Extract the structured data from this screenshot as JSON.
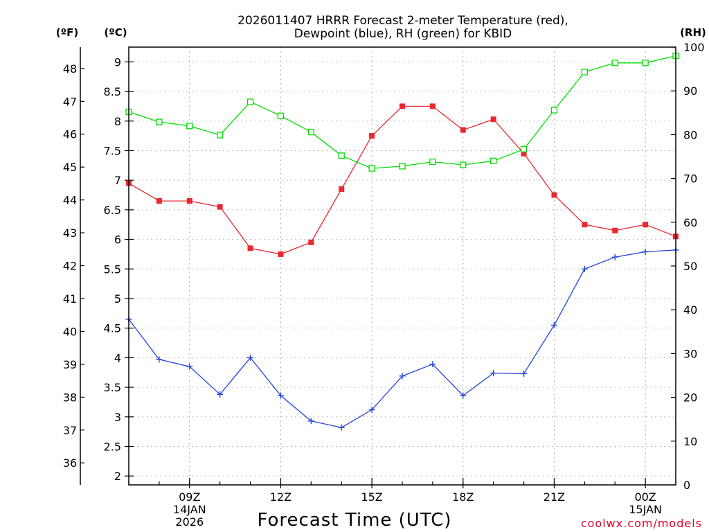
{
  "title_lines": [
    "2026011407 HRRR Forecast 2-meter Temperature (red),",
    "Dewpoint (blue), RH (green) for KBID"
  ],
  "units": {
    "fahrenheit": "(ºF)",
    "celsius": "(ºC)",
    "rh": "(RH)"
  },
  "credit": "coolwx.com/models",
  "colors": {
    "temperature": "#e8282e",
    "dewpoint": "#2244dd",
    "rh": "#00dd00",
    "grid": "#9a9a9a"
  },
  "chart_data": {
    "type": "line",
    "title": "2026011407 HRRR Forecast 2-meter Temperature (red), Dewpoint (blue), RH (green) for KBID",
    "xlabel": "Forecast Time (UTC)",
    "x_hours": [
      7,
      8,
      9,
      10,
      11,
      12,
      13,
      14,
      15,
      16,
      17,
      18,
      19,
      20,
      21,
      22,
      23,
      24,
      25
    ],
    "x_range": [
      7,
      25
    ],
    "x_ticks": [
      {
        "hour": 9,
        "lines": [
          "09Z",
          "14JAN",
          "2026"
        ]
      },
      {
        "hour": 12,
        "lines": [
          "12Z"
        ]
      },
      {
        "hour": 15,
        "lines": [
          "15Z"
        ]
      },
      {
        "hour": 18,
        "lines": [
          "18Z"
        ]
      },
      {
        "hour": 21,
        "lines": [
          "21Z"
        ]
      },
      {
        "hour": 24,
        "lines": [
          "00Z",
          "15JAN"
        ]
      }
    ],
    "y_celsius": {
      "range": [
        1.85,
        9.25
      ],
      "ticks": [
        2,
        2.5,
        3,
        3.5,
        4,
        4.5,
        5,
        5.5,
        6,
        6.5,
        7,
        7.5,
        8,
        8.5,
        9
      ],
      "tick_labels": [
        "2",
        "2.5",
        "3",
        "3.5",
        "4",
        "4.5",
        "5",
        "5.5",
        "6",
        "6.5",
        "7",
        "7.5",
        "8",
        "8.5",
        "9"
      ]
    },
    "y_fahrenheit": {
      "ticks": [
        36,
        37,
        38,
        39,
        40,
        41,
        42,
        43,
        44,
        45,
        46,
        47,
        48
      ],
      "tick_labels": [
        "36",
        "37",
        "38",
        "39",
        "40",
        "41",
        "42",
        "43",
        "44",
        "45",
        "46",
        "47",
        "48"
      ]
    },
    "y_rh": {
      "range": [
        0,
        100
      ],
      "ticks": [
        0,
        10,
        20,
        30,
        40,
        50,
        60,
        70,
        80,
        90,
        100
      ],
      "tick_labels": [
        "0",
        "10",
        "20",
        "30",
        "40",
        "50",
        "60",
        "70",
        "80",
        "90",
        "100"
      ]
    },
    "series": [
      {
        "name": "Temperature",
        "unit": "C",
        "axis": "celsius",
        "marker": "filled-square",
        "color": "#e8282e",
        "values": [
          6.95,
          6.65,
          6.65,
          6.55,
          5.85,
          5.75,
          5.95,
          6.85,
          7.75,
          8.25,
          8.25,
          7.85,
          8.03,
          7.45,
          6.75,
          6.25,
          6.15,
          6.25,
          6.05
        ]
      },
      {
        "name": "Dewpoint",
        "unit": "C",
        "axis": "celsius",
        "marker": "plus",
        "color": "#2244dd",
        "values": [
          4.65,
          3.97,
          3.85,
          3.38,
          4.0,
          3.36,
          2.93,
          2.82,
          3.12,
          3.69,
          3.89,
          3.36,
          3.74,
          3.73,
          4.55,
          5.5,
          5.7,
          5.79,
          5.82
        ]
      },
      {
        "name": "RH",
        "unit": "%",
        "axis": "rh",
        "marker": "open-square",
        "color": "#00dd00",
        "values": [
          85.2,
          82.9,
          82.0,
          79.9,
          87.5,
          84.3,
          80.6,
          75.2,
          72.3,
          72.8,
          73.8,
          73.1,
          74.0,
          76.7,
          85.6,
          94.3,
          96.4,
          96.4,
          98.0
        ]
      }
    ]
  }
}
